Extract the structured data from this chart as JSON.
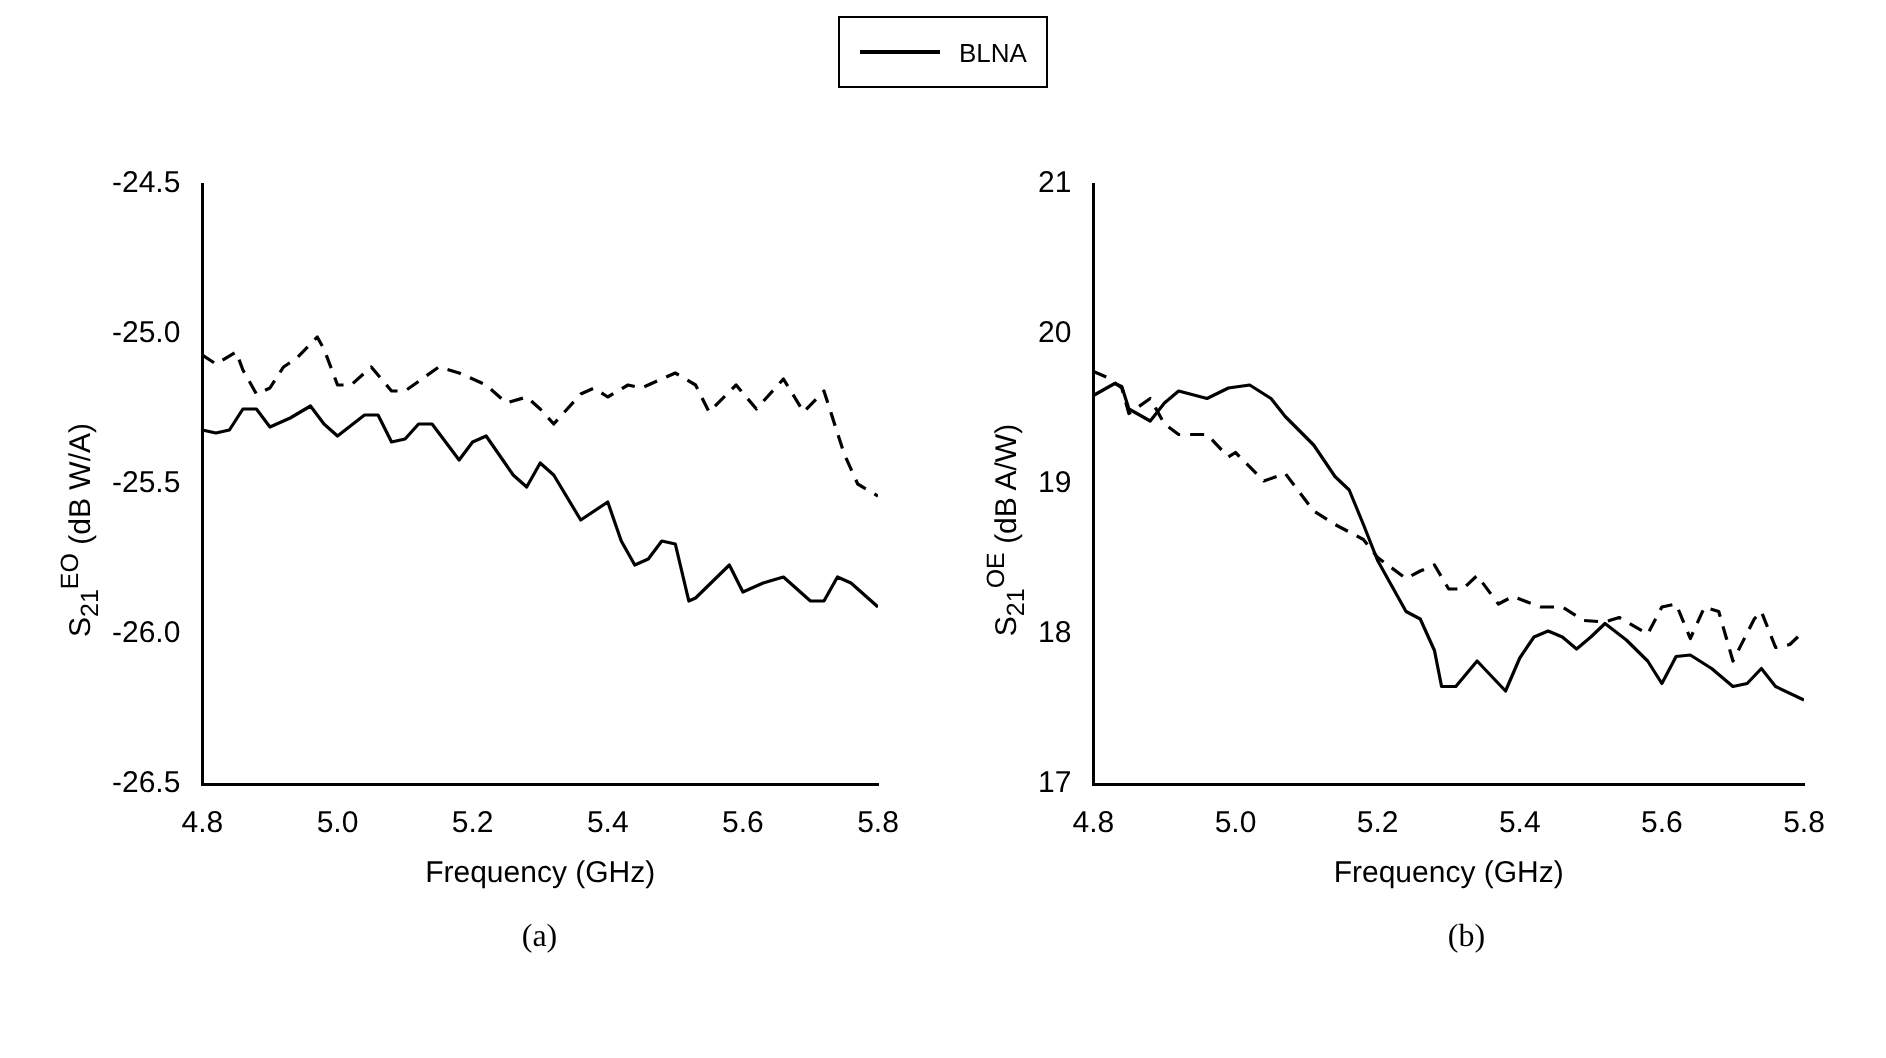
{
  "chart_data": [
    {
      "type": "line",
      "xlabel": "Frequency (GHz)",
      "ylabel": "S$_{21}$$^{EO}$ (dB W/A)",
      "legend": "top",
      "grid": false,
      "annotations": [
        "(a)"
      ],
      "xlim": [
        4.8,
        5.8
      ],
      "xticks": [
        4.8,
        {
          "value": 5.0,
          "label": "5.0"
        },
        5.2,
        5.4,
        5.6,
        5.8
      ],
      "ylim": [
        -26.5,
        -24.5
      ],
      "yticks": [
        -26.5,
        {
          "value": -26.0,
          "label": "-26.0"
        },
        -25.5,
        {
          "value": -25.0,
          "label": "-25.0"
        },
        -24.5
      ],
      "series": [
        {
          "name": "BLNA",
          "color": "#000000",
          "line_style": "solid",
          "x": [
            4.8,
            4.82,
            4.84,
            4.86,
            4.88,
            4.9,
            4.93,
            4.96,
            4.98,
            5.0,
            5.04,
            5.06,
            5.08,
            5.1,
            5.12,
            5.14,
            5.18,
            5.2,
            5.22,
            5.26,
            5.28,
            5.3,
            5.32,
            5.36,
            5.4,
            5.42,
            5.44,
            5.46,
            5.48,
            5.5,
            5.52,
            5.53,
            5.58,
            5.6,
            5.63,
            5.66,
            5.7,
            5.72,
            5.74,
            5.76,
            5.8
          ],
          "values": [
            -25.32,
            -25.33,
            -25.32,
            -25.25,
            -25.25,
            -25.31,
            -25.28,
            -25.24,
            -25.3,
            -25.34,
            -25.27,
            -25.27,
            -25.36,
            -25.35,
            -25.3,
            -25.3,
            -25.42,
            -25.36,
            -25.34,
            -25.47,
            -25.51,
            -25.43,
            -25.47,
            -25.62,
            -25.56,
            -25.69,
            -25.77,
            -25.75,
            -25.69,
            -25.7,
            -25.89,
            -25.88,
            -25.77,
            -25.86,
            -25.83,
            -25.81,
            -25.89,
            -25.89,
            -25.81,
            -25.83,
            -25.91
          ]
        },
        {
          "color": "#000000",
          "line_style": "dashed",
          "x": [
            4.8,
            4.82,
            4.85,
            4.86,
            4.88,
            4.9,
            4.92,
            4.94,
            4.97,
            4.98,
            5.0,
            5.02,
            5.05,
            5.08,
            5.1,
            5.15,
            5.18,
            5.22,
            5.25,
            5.28,
            5.3,
            5.32,
            5.36,
            5.38,
            5.4,
            5.43,
            5.45,
            5.5,
            5.53,
            5.55,
            5.59,
            5.62,
            5.66,
            5.69,
            5.72,
            5.73,
            5.75,
            5.77,
            5.8
          ],
          "values": [
            -25.07,
            -25.1,
            -25.06,
            -25.12,
            -25.2,
            -25.18,
            -25.11,
            -25.08,
            -25.01,
            -25.05,
            -25.17,
            -25.17,
            -25.11,
            -25.19,
            -25.19,
            -25.11,
            -25.13,
            -25.17,
            -25.23,
            -25.21,
            -25.25,
            -25.3,
            -25.2,
            -25.18,
            -25.21,
            -25.17,
            -25.18,
            -25.13,
            -25.17,
            -25.26,
            -25.17,
            -25.25,
            -25.15,
            -25.26,
            -25.19,
            -25.26,
            -25.4,
            -25.5,
            -25.54
          ]
        }
      ]
    },
    {
      "type": "line",
      "xlabel": "Frequency (GHz)",
      "ylabel": "S$_{21}$$^{OE}$ (dB A/W)",
      "grid": false,
      "annotations": [
        "(b)"
      ],
      "xlim": [
        4.8,
        5.8
      ],
      "xticks": [
        4.8,
        {
          "value": 5.0,
          "label": "5.0"
        },
        5.2,
        5.4,
        5.6,
        5.8
      ],
      "ylim": [
        17,
        21
      ],
      "yticks": [
        17,
        18,
        19,
        20,
        21
      ],
      "series": [
        {
          "color": "#000000",
          "line_style": "solid",
          "x": [
            4.8,
            4.83,
            4.84,
            4.85,
            4.88,
            4.9,
            4.92,
            4.96,
            4.99,
            5.02,
            5.05,
            5.07,
            5.11,
            5.14,
            5.16,
            5.18,
            5.2,
            5.22,
            5.24,
            5.26,
            5.28,
            5.29,
            5.31,
            5.34,
            5.36,
            5.38,
            5.4,
            5.42,
            5.44,
            5.46,
            5.48,
            5.5,
            5.52,
            5.55,
            5.58,
            5.6,
            5.62,
            5.64,
            5.67,
            5.7,
            5.72,
            5.74,
            5.76,
            5.8
          ],
          "values": [
            19.59,
            19.67,
            19.65,
            19.5,
            19.42,
            19.54,
            19.62,
            19.57,
            19.64,
            19.66,
            19.57,
            19.45,
            19.26,
            19.05,
            18.96,
            18.73,
            18.49,
            18.32,
            18.15,
            18.1,
            17.89,
            17.65,
            17.65,
            17.82,
            17.72,
            17.62,
            17.84,
            17.98,
            18.02,
            17.98,
            17.9,
            17.98,
            18.07,
            17.96,
            17.82,
            17.67,
            17.85,
            17.86,
            17.77,
            17.65,
            17.67,
            17.77,
            17.65,
            17.56
          ]
        },
        {
          "color": "#000000",
          "line_style": "dashed",
          "x": [
            4.8,
            4.82,
            4.84,
            4.85,
            4.88,
            4.9,
            4.92,
            4.96,
            4.99,
            5.0,
            5.04,
            5.07,
            5.11,
            5.14,
            5.18,
            5.2,
            5.24,
            5.26,
            5.28,
            5.3,
            5.32,
            5.34,
            5.37,
            5.39,
            5.43,
            5.46,
            5.49,
            5.52,
            5.54,
            5.58,
            5.6,
            5.62,
            5.64,
            5.66,
            5.68,
            5.7,
            5.73,
            5.74,
            5.76,
            5.78,
            5.8
          ],
          "values": [
            19.75,
            19.71,
            19.64,
            19.47,
            19.57,
            19.4,
            19.33,
            19.33,
            19.18,
            19.21,
            19.02,
            19.07,
            18.82,
            18.73,
            18.63,
            18.51,
            18.37,
            18.42,
            18.46,
            18.3,
            18.3,
            18.39,
            18.2,
            18.25,
            18.18,
            18.18,
            18.09,
            18.08,
            18.11,
            18.0,
            18.18,
            18.2,
            17.97,
            18.18,
            18.15,
            17.82,
            18.1,
            18.15,
            17.91,
            17.93,
            18.02
          ]
        }
      ]
    }
  ]
}
